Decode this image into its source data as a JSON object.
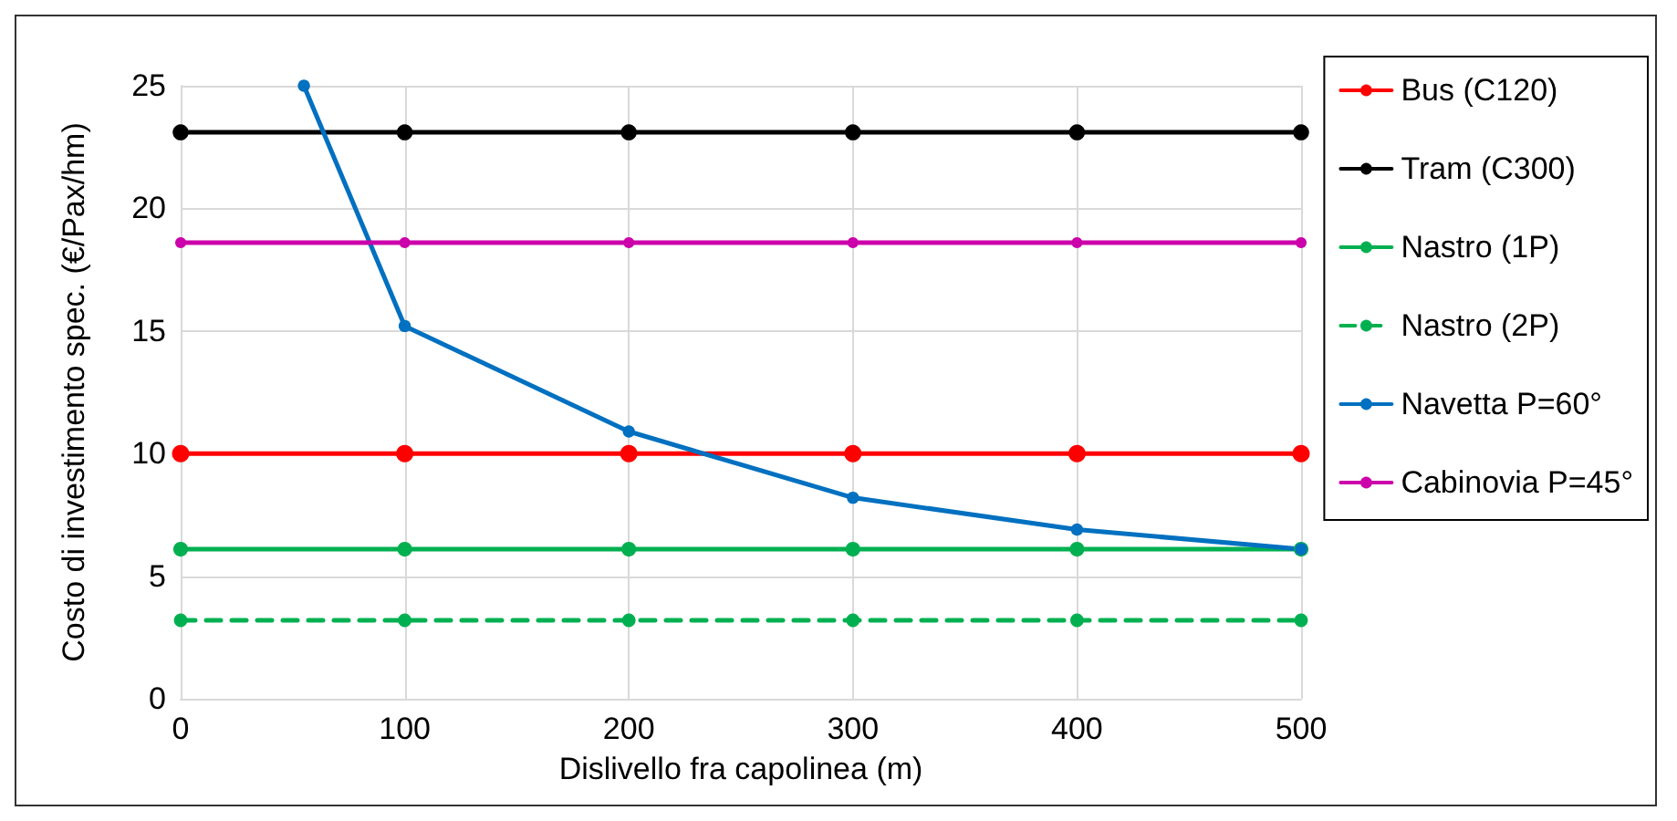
{
  "chart_data": {
    "type": "line",
    "xlabel": "Dislivello fra capolinea (m)",
    "ylabel": "Costo di investimento spec. (€/Pax/hm)",
    "x": [
      0,
      100,
      200,
      300,
      400,
      500
    ],
    "xlim": [
      0,
      500
    ],
    "xticks": [
      0,
      100,
      200,
      300,
      400,
      500
    ],
    "ylim": [
      0,
      25
    ],
    "yticks": [
      0,
      5,
      10,
      15,
      20,
      25
    ],
    "grid": true,
    "legend": "right",
    "marker": "circle",
    "line_style": "solid",
    "series": [
      {
        "name": "Bus (C120)",
        "color": "#ff0000",
        "values": [
          10,
          10,
          10,
          10,
          10,
          10
        ]
      },
      {
        "name": "Tram (C300)",
        "color": "#000000",
        "values": [
          23.1,
          23.1,
          23.1,
          23.1,
          23.1,
          23.1
        ]
      },
      {
        "name": "Nastro (1P)",
        "color": "#00b050",
        "values": [
          6.1,
          6.1,
          6.1,
          6.1,
          6.1,
          6.1
        ]
      },
      {
        "name": "Nastro (2P)",
        "color": "#00b050",
        "line_style": "dashed",
        "values": [
          3.2,
          3.2,
          3.2,
          3.2,
          3.2,
          3.2
        ]
      },
      {
        "name": "Navetta P=60°",
        "color": "#0070c0",
        "x": [
          55,
          100,
          200,
          300,
          400,
          500
        ],
        "values": [
          25,
          15.2,
          10.9,
          8.2,
          6.9,
          6.1
        ]
      },
      {
        "name": "Cabinovia P=45°",
        "color": "#cc00aa",
        "values": [
          18.6,
          18.6,
          18.6,
          18.6,
          18.6,
          18.6
        ]
      }
    ]
  }
}
